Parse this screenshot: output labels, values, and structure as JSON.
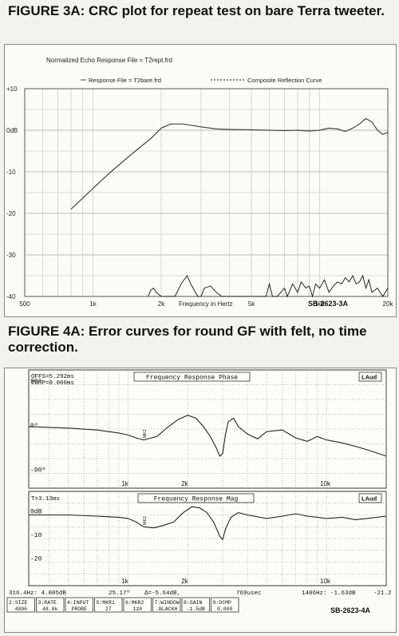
{
  "figure3a": {
    "title": "FIGURE 3A: CRC plot for repeat test on bare Terra tweeter.",
    "chart_data": {
      "type": "line",
      "title": "Normalized Echo Response File = T2rept.frd",
      "xlabel": "Frequency in Hertz",
      "ylabel": "",
      "x_scale": "log",
      "xlim": [
        500,
        20000
      ],
      "ylim": [
        -40,
        10
      ],
      "grid": true,
      "legend_position": "top",
      "yticks": [
        {
          "value": 10,
          "label": "+10"
        },
        {
          "value": 0,
          "label": "0dB"
        },
        {
          "value": -10,
          "label": "-10"
        },
        {
          "value": -20,
          "label": "-20"
        },
        {
          "value": -30,
          "label": "-30"
        },
        {
          "value": -40,
          "label": "-40"
        }
      ],
      "xticks": [
        {
          "value": 500,
          "label": "500"
        },
        {
          "value": 1000,
          "label": "1k"
        },
        {
          "value": 2000,
          "label": "2k"
        },
        {
          "value": 5000,
          "label": "5k"
        },
        {
          "value": 10000,
          "label": "10k"
        },
        {
          "value": 20000,
          "label": "20k"
        }
      ],
      "series": [
        {
          "name": "Response File = T2bare.frd",
          "style": "solid",
          "color": "#444444",
          "x": [
            800,
            1000,
            1200,
            1500,
            1800,
            2000,
            2200,
            2500,
            3000,
            3500,
            4000,
            5000,
            6000,
            7000,
            8000,
            9000,
            10000,
            11000,
            12000,
            13000,
            14000,
            15000,
            16000,
            17000,
            18000,
            19000,
            20000
          ],
          "y": [
            -19,
            -14,
            -10,
            -5.5,
            -2,
            0.5,
            1.5,
            1.5,
            0.8,
            0.3,
            0.2,
            0.1,
            0,
            -0.1,
            0,
            -0.2,
            0,
            0.5,
            0.3,
            -0.3,
            0.5,
            1.5,
            2.8,
            2,
            0,
            -1,
            -0.5
          ]
        },
        {
          "name": "Composite Reflection Curve",
          "style": "dashed",
          "color": "#111111",
          "x": [
            1750,
            1800,
            1850,
            1900,
            2000,
            2300,
            2450,
            2600,
            2700,
            2900,
            3000,
            3100,
            3300,
            3500,
            3700,
            4000,
            5000,
            5800,
            6000,
            6200,
            6500,
            7000,
            7200,
            7600,
            8000,
            8300,
            8700,
            9000,
            9300,
            9600,
            10000,
            10500,
            11000,
            11500,
            12000,
            12500,
            13000,
            13500,
            14000,
            14500,
            15000,
            15500,
            16000,
            16500,
            17000,
            18000,
            19000,
            20000
          ],
          "y": [
            -40,
            -38.5,
            -38,
            -39,
            -40,
            -40,
            -37,
            -35,
            -37,
            -40,
            -40,
            -38,
            -37.5,
            -39,
            -40,
            -40,
            -40,
            -40,
            -37,
            -40,
            -40,
            -38,
            -40,
            -37,
            -39,
            -36.5,
            -38,
            -37.5,
            -40,
            -37,
            -38,
            -36,
            -39,
            -37.5,
            -36.5,
            -37,
            -35.5,
            -36.5,
            -35,
            -37,
            -36.5,
            -35,
            -38,
            -36,
            -39,
            -38,
            -40,
            -38
          ]
        }
      ]
    },
    "watermark": "SB-2623-3A"
  },
  "figure4a": {
    "title": "FIGURE 4A: Error curves for round GF with felt, no time correction.",
    "header_left": [
      "OFFS=5.292ms",
      "COMP=0.000ms"
    ],
    "logo": "LAud",
    "chart_data": [
      {
        "type": "line",
        "title": "Frequency Response Phase",
        "x_scale": "log",
        "xlim": [
          316.4,
          20000
        ],
        "ylim": [
          -120,
          120
        ],
        "grid": true,
        "yticks": [
          {
            "value": 90,
            "label": "90º"
          },
          {
            "value": 0,
            "label": "0º"
          },
          {
            "value": -90,
            "label": "-90º"
          }
        ],
        "xticks": [
          {
            "value": 1000,
            "label": "1k"
          },
          {
            "value": 2000,
            "label": "2k"
          },
          {
            "value": 10000,
            "label": "10k"
          }
        ],
        "series": [
          {
            "x": [
              316.4,
              500,
              700,
              900,
              1000,
              1100,
              1200,
              1400,
              1600,
              1800,
              2000,
              2200,
              2400,
              2600,
              2800,
              2900,
              3000,
              3100,
              3200,
              3400,
              3600,
              4000,
              4500,
              5000,
              6000,
              7000,
              8000,
              9000,
              10000,
              12000,
              14000,
              16000,
              20000
            ],
            "y": [
              5,
              2,
              -2,
              -8,
              -12,
              -18,
              -22,
              -15,
              5,
              20,
              28,
              22,
              5,
              -15,
              -40,
              -55,
              -50,
              -10,
              15,
              22,
              5,
              -10,
              -20,
              -5,
              -2,
              -18,
              -25,
              -15,
              -22,
              -28,
              -35,
              -42,
              -55
            ]
          }
        ],
        "markers": [
          {
            "x": 1200,
            "label": "MK2"
          }
        ]
      },
      {
        "type": "line",
        "title": "Frequency Response Mag",
        "x_scale": "log",
        "xlim": [
          316.4,
          20000
        ],
        "ylim": [
          -30,
          10
        ],
        "grid": true,
        "yticks": [
          {
            "value": 0,
            "label": "0dB"
          },
          {
            "value": -10,
            "label": "-10"
          },
          {
            "value": -20,
            "label": "-20"
          }
        ],
        "xticks": [
          {
            "value": 1000,
            "label": "1k"
          },
          {
            "value": 2000,
            "label": "2k"
          },
          {
            "value": 10000,
            "label": "10k"
          }
        ],
        "series": [
          {
            "x": [
              316.4,
              500,
              700,
              900,
              1000,
              1100,
              1200,
              1350,
              1500,
              1700,
              1900,
              2100,
              2300,
              2500,
              2700,
              2900,
              3000,
              3100,
              3300,
              3600,
              4000,
              5000,
              6000,
              7000,
              8000,
              9000,
              10000,
              12000,
              14000,
              16000,
              20000
            ],
            "y": [
              0,
              0,
              -0.5,
              -1,
              -1.5,
              -3,
              -5,
              -5.5,
              -4.5,
              -3,
              1,
              3.5,
              3,
              1,
              -3,
              -9,
              -10.5,
              -6,
              -1,
              1,
              0,
              -1.5,
              -0.5,
              0.5,
              -0.5,
              -1,
              -1.5,
              -1,
              -2,
              -1.5,
              -0.5
            ]
          }
        ],
        "markers": [
          {
            "x": 1200,
            "label": "MK2"
          }
        ]
      }
    ],
    "panel2_header": "T=3.13ms",
    "status_line": [
      "316.4Hz: 4.005dB",
      "25.17º",
      "Δ=-5.64dB,",
      "769usec",
      "1406Hz: -1.63dB",
      "-21.2"
    ],
    "softkeys": [
      {
        "top": "2:SIZE",
        "bottom": "4096"
      },
      {
        "top": "3:RATE",
        "bottom": "48.0k"
      },
      {
        "top": "4:INPUT",
        "bottom": "PROBE"
      },
      {
        "top": "5:MKR1",
        "bottom": "27"
      },
      {
        "top": "6:MKR2",
        "bottom": "120"
      },
      {
        "top": "7:WINDOW",
        "bottom": ".BLACKH"
      },
      {
        "top": "8:GAIN",
        "bottom": "-1.5dB"
      },
      {
        "top": "9:DCMP",
        "bottom": "0.000"
      }
    ],
    "watermark": "SB-2623-4A"
  }
}
